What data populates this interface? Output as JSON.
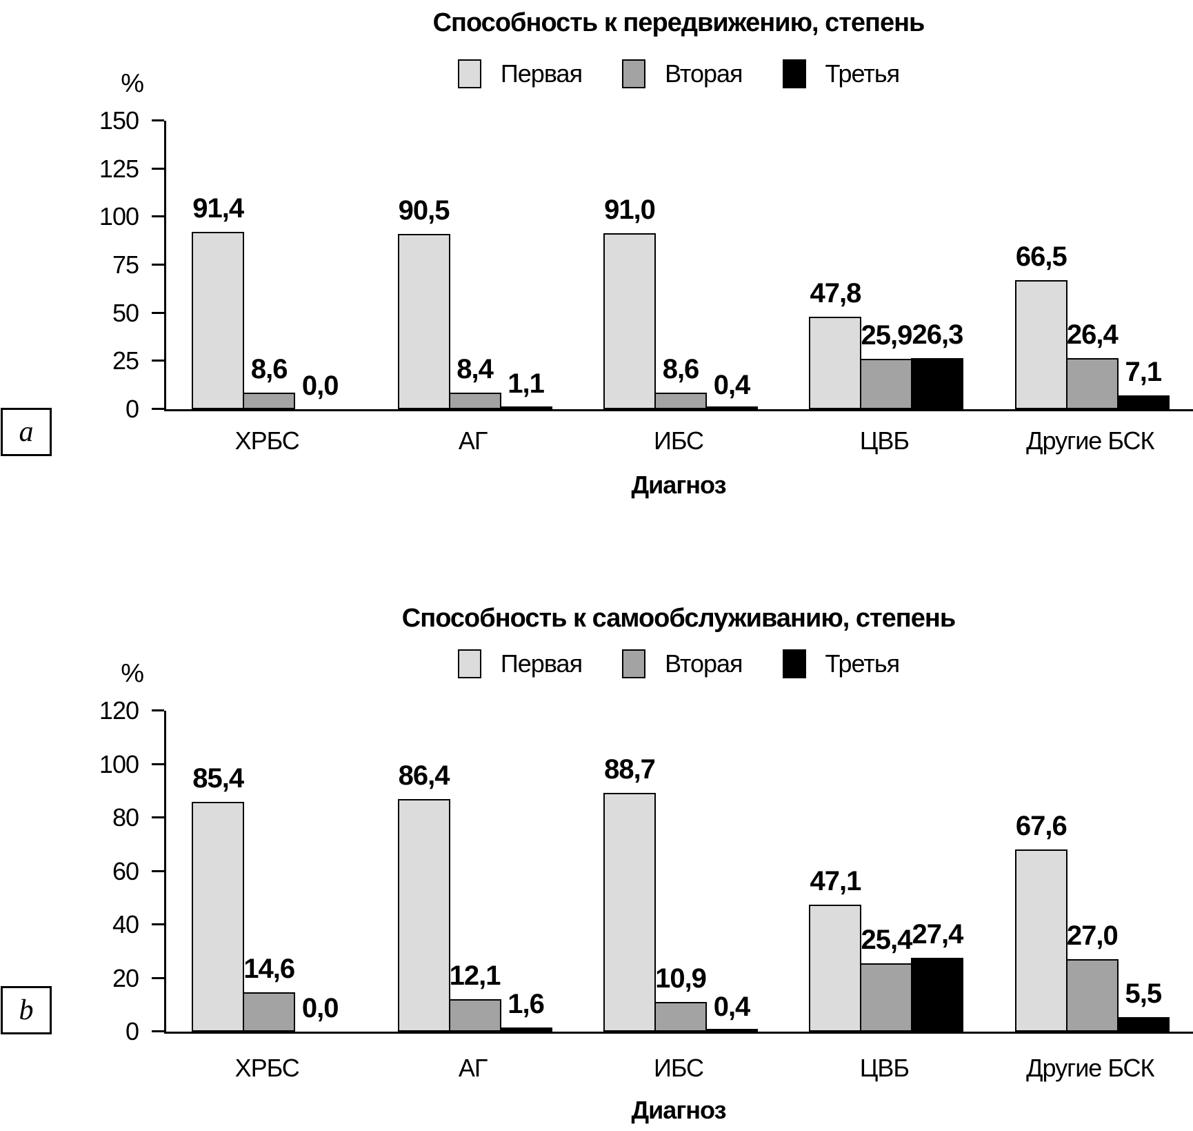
{
  "panel_labels": {
    "a": "a",
    "b": "b"
  },
  "chart_data": [
    {
      "type": "bar",
      "title": "Способность к передвижению, степень",
      "ylabel": "%",
      "xlabel": "Диагноз",
      "ylim": [
        0,
        150
      ],
      "yticks": [
        0,
        25,
        50,
        75,
        100,
        125,
        150
      ],
      "grid": false,
      "legend_position": "top-center",
      "categories": [
        "ХРБС",
        "АГ",
        "ИБС",
        "ЦВБ",
        "Другие БСК"
      ],
      "series": [
        {
          "name": "Первая",
          "color": "#dcdcdc",
          "values": [
            91.4,
            90.5,
            91.0,
            47.8,
            66.5
          ],
          "labels": [
            "91,4",
            "90,5",
            "91,0",
            "47,8",
            "66,5"
          ]
        },
        {
          "name": "Вторая",
          "color": "#a3a3a3",
          "values": [
            8.6,
            8.4,
            8.6,
            25.9,
            26.4
          ],
          "labels": [
            "8,6",
            "8,4",
            "8,6",
            "25,9",
            "26,4"
          ]
        },
        {
          "name": "Третья",
          "color": "#000000",
          "values": [
            0.0,
            1.1,
            0.4,
            26.3,
            7.1
          ],
          "labels": [
            "0,0",
            "1,1",
            "0,4",
            "26,3",
            "7,1"
          ]
        }
      ]
    },
    {
      "type": "bar",
      "title": "Способность к самообслуживанию, степень",
      "ylabel": "%",
      "xlabel": "Диагноз",
      "ylim": [
        0,
        120
      ],
      "yticks": [
        0,
        20,
        40,
        60,
        80,
        100,
        120
      ],
      "grid": false,
      "legend_position": "top-center",
      "categories": [
        "ХРБС",
        "АГ",
        "ИБС",
        "ЦВБ",
        "Другие БСК"
      ],
      "series": [
        {
          "name": "Первая",
          "color": "#dcdcdc",
          "values": [
            85.4,
            86.4,
            88.7,
            47.1,
            67.6
          ],
          "labels": [
            "85,4",
            "86,4",
            "88,7",
            "47,1",
            "67,6"
          ]
        },
        {
          "name": "Вторая",
          "color": "#a3a3a3",
          "values": [
            14.6,
            12.1,
            10.9,
            25.4,
            27.0
          ],
          "labels": [
            "14,6",
            "12,1",
            "10,9",
            "25,4",
            "27,0"
          ]
        },
        {
          "name": "Третья",
          "color": "#000000",
          "values": [
            0.0,
            1.6,
            0.4,
            27.4,
            5.5
          ],
          "labels": [
            "0,0",
            "1,6",
            "0,4",
            "27,4",
            "5,5"
          ]
        }
      ]
    }
  ]
}
